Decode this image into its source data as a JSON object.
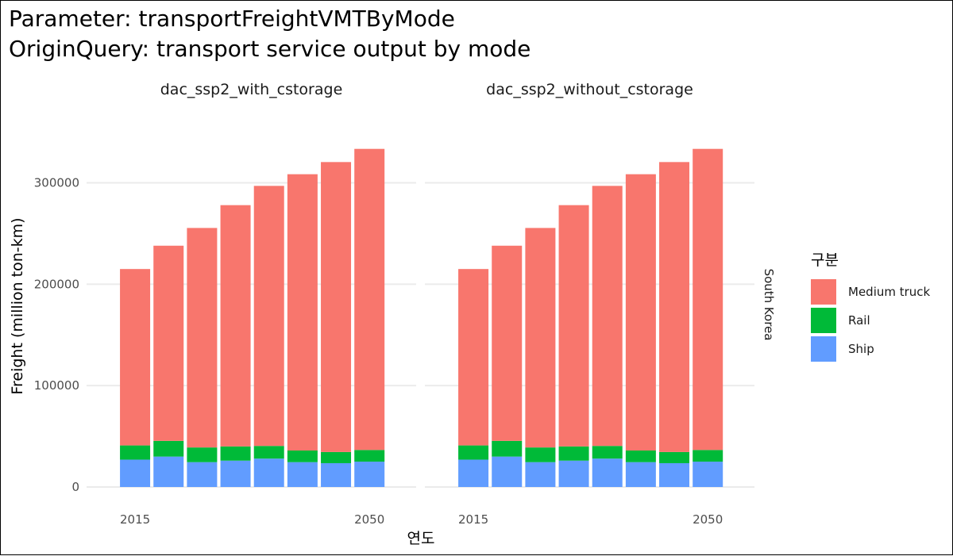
{
  "titles": {
    "line1": "Parameter: transportFreightVMTByMode",
    "line2": "OriginQuery: transport service output by mode"
  },
  "chart_data": {
    "type": "bar",
    "stacked": true,
    "facets": [
      "dac_ssp2_with_cstorage",
      "dac_ssp2_without_cstorage"
    ],
    "strip_label": "South Korea",
    "xlabel": "연도",
    "ylabel": "Freight (million ton-km)",
    "x_tick_labels": [
      "2015",
      "2050"
    ],
    "categories": [
      2015,
      2020,
      2025,
      2030,
      2035,
      2040,
      2045,
      2050
    ],
    "y_ticks": [
      0,
      100000,
      200000,
      300000
    ],
    "ylim": [
      0,
      345000
    ],
    "grid": true,
    "legend": {
      "title": "구분",
      "position": "right",
      "entries": [
        "Medium truck",
        "Rail",
        "Ship"
      ]
    },
    "colors": {
      "Medium truck": "#F8766D",
      "Rail": "#00BA38",
      "Ship": "#619CFF"
    },
    "panels": [
      {
        "facet": "dac_ssp2_with_cstorage",
        "series": [
          {
            "name": "Ship",
            "values": [
              27000,
              30000,
              24500,
              26000,
              28000,
              24500,
              23500,
              25000
            ]
          },
          {
            "name": "Rail",
            "values": [
              14000,
              15500,
              14500,
              14000,
              12500,
              11500,
              11000,
              11500
            ]
          },
          {
            "name": "Medium truck",
            "values": [
              174000,
              192500,
              216500,
              238000,
              256500,
              272500,
              286000,
              297000
            ]
          }
        ]
      },
      {
        "facet": "dac_ssp2_without_cstorage",
        "series": [
          {
            "name": "Ship",
            "values": [
              27000,
              30000,
              24500,
              26000,
              28000,
              24500,
              23500,
              25000
            ]
          },
          {
            "name": "Rail",
            "values": [
              14000,
              15500,
              14500,
              14000,
              12500,
              11500,
              11000,
              11500
            ]
          },
          {
            "name": "Medium truck",
            "values": [
              174000,
              192500,
              216500,
              238000,
              256500,
              272500,
              286000,
              297000
            ]
          }
        ]
      }
    ]
  }
}
